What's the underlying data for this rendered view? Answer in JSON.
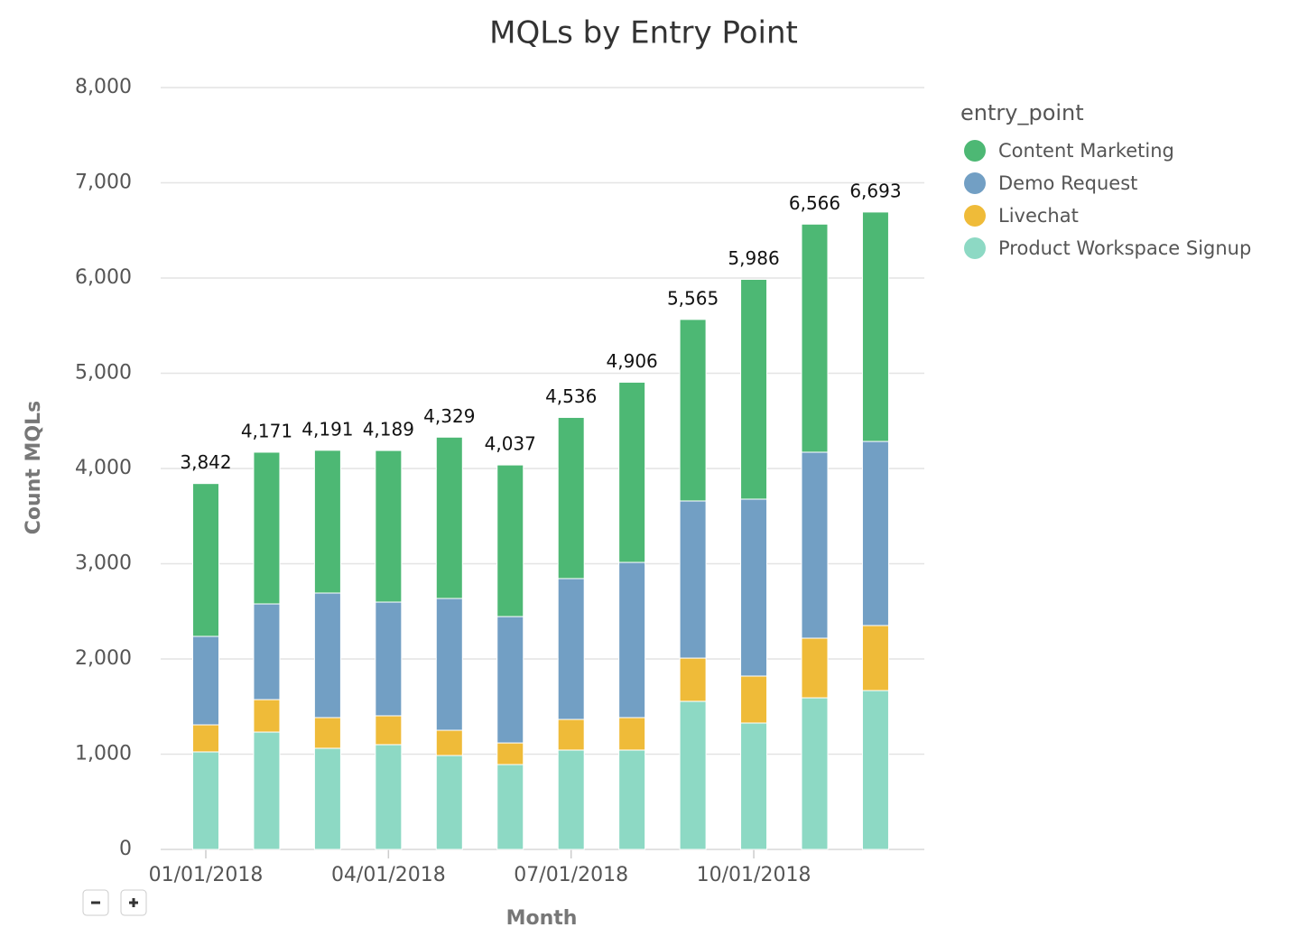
{
  "chart_data": {
    "type": "stacked-bar",
    "title": "MQLs by Entry Point",
    "x_label": "Month",
    "y_label": "Count MQLs",
    "legend_title": "entry_point",
    "legend": "right-top",
    "grid": true,
    "categories": [
      "01/01/2018",
      null,
      null,
      "04/01/2018",
      null,
      null,
      "07/01/2018",
      null,
      null,
      "10/01/2018",
      null,
      null
    ],
    "series": [
      {
        "name": "Content Marketing",
        "color": "#4db874",
        "values": [
          1605,
          1593,
          1499,
          1592,
          1694,
          1592,
          1692,
          1892,
          1906,
          2308,
          2395,
          2409
        ]
      },
      {
        "name": "Demo Request",
        "color": "#729fc4",
        "values": [
          929,
          1005,
          1308,
          1194,
          1384,
          1327,
          1479,
          1630,
          1650,
          1858,
          1953,
          1933
        ]
      },
      {
        "name": "Livechat",
        "color": "#efbb39",
        "values": [
          284,
          341,
          322,
          303,
          265,
          227,
          322,
          341,
          454,
          493,
          626,
          683
        ]
      },
      {
        "name": "Product Workspace Signup",
        "color": "#8dd9c4",
        "values": [
          1024,
          1232,
          1062,
          1100,
          986,
          891,
          1043,
          1043,
          1555,
          1327,
          1592,
          1668
        ]
      }
    ],
    "totals": {
      "values": [
        3842,
        4171,
        4191,
        4189,
        4329,
        4037,
        4536,
        4906,
        5565,
        5986,
        6566,
        6693
      ],
      "value_labels": [
        "3,842",
        "4,171",
        "4,191",
        "4,189",
        "4,329",
        "4,037",
        "4,536",
        "4,906",
        "5,565",
        "5,986",
        "6,566",
        "6,693"
      ]
    },
    "ylim": [
      0,
      8000
    ],
    "yticks": [
      0,
      {
        "value": 1000,
        "label": "1,000"
      },
      {
        "value": 2000,
        "label": "2,000"
      },
      {
        "value": 3000,
        "label": "3,000"
      },
      {
        "value": 4000,
        "label": "4,000"
      },
      {
        "value": 5000,
        "label": "5,000"
      },
      {
        "value": 6000,
        "label": "6,000"
      },
      {
        "value": 7000,
        "label": "7,000"
      },
      {
        "value": 8000,
        "label": "8,000"
      }
    ]
  }
}
